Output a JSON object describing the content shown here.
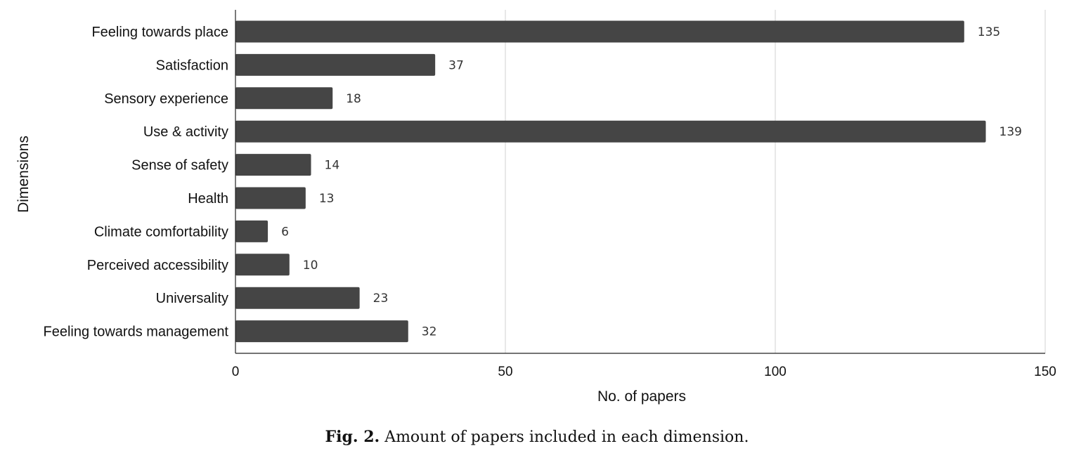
{
  "chart_data": {
    "type": "bar",
    "orientation": "horizontal",
    "categories": [
      "Feeling towards place",
      "Satisfaction",
      "Sensory experience",
      "Use & activity",
      "Sense of safety",
      "Health",
      "Climate comfortability",
      "Perceived accessibility",
      "Universality",
      "Feeling towards management"
    ],
    "values": [
      135,
      37,
      18,
      139,
      14,
      13,
      6,
      10,
      23,
      32
    ],
    "data_labels": [
      "135",
      "37",
      "18",
      "139",
      "14",
      "13",
      "6",
      "10",
      "23",
      "32"
    ],
    "xlabel": "No. of papers",
    "ylabel": "Dimensions",
    "xlim": [
      0,
      150
    ],
    "x_ticks": [
      0,
      50,
      100,
      150
    ],
    "x_tick_labels": [
      "0",
      "50",
      "100",
      "150"
    ],
    "grid": "vertical",
    "legend": "none",
    "bar_color": "#454545",
    "grid_color": "#d0d0d0"
  },
  "caption": {
    "label": "Fig. 2.",
    "text": "Amount of papers included in each dimension."
  }
}
